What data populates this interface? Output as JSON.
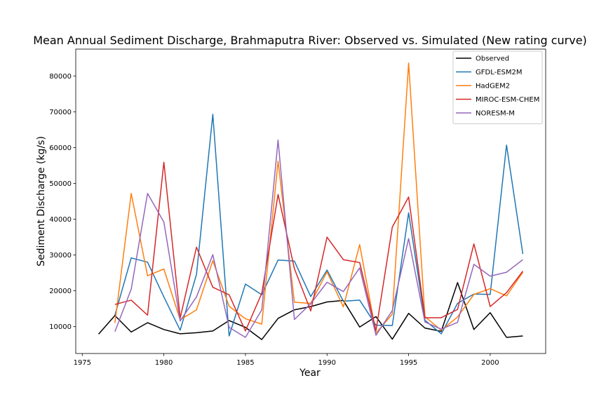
{
  "chart_data": {
    "type": "line",
    "title": "Mean Annual Sediment Discharge, Brahmaputra River: Observed vs. Simulated (New rating curve)",
    "xlabel": "Year",
    "ylabel": "Sediment Discharge (kg/s)",
    "xlim": [
      1974.6,
      2003.4
    ],
    "ylim": [
      2500,
      87500
    ],
    "xticks": [
      1975,
      1980,
      1985,
      1990,
      1995,
      2000
    ],
    "yticks": [
      10000,
      20000,
      30000,
      40000,
      50000,
      60000,
      70000,
      80000
    ],
    "grid": false,
    "legend_position": "upper-right",
    "series": [
      {
        "name": "Observed",
        "color": "#000000",
        "x": [
          1976,
          1977,
          1978,
          1979,
          1980,
          1981,
          1982,
          1983,
          1984,
          1985,
          1986,
          1987,
          1988,
          1989,
          1990,
          1991,
          1992,
          1993,
          1994,
          1995,
          1996,
          1997,
          1998,
          1999,
          2000,
          2001,
          2002
        ],
        "values": [
          7900,
          13100,
          8500,
          11100,
          9200,
          8000,
          8300,
          8800,
          11700,
          9800,
          6400,
          12300,
          14700,
          15600,
          16900,
          17300,
          9900,
          12800,
          6500,
          13700,
          9600,
          8700,
          22300,
          9200,
          13900,
          7000,
          7400
        ]
      },
      {
        "name": "GFDL-ESM2M",
        "color": "#1f77b4",
        "x": [
          1977,
          1978,
          1979,
          1980,
          1981,
          1982,
          1983,
          1984,
          1985,
          1986,
          1987,
          1988,
          1989,
          1990,
          1991,
          1992,
          1993,
          1994,
          1995,
          1996,
          1997,
          1998,
          1999,
          2000,
          2001,
          2002
        ],
        "values": [
          13200,
          29200,
          28000,
          18300,
          9000,
          24600,
          69300,
          7400,
          21900,
          18900,
          28600,
          28300,
          18400,
          25800,
          17100,
          17400,
          10400,
          10300,
          41800,
          11800,
          8000,
          16500,
          19100,
          19000,
          60700,
          30300
        ]
      },
      {
        "name": "HadGEM2",
        "color": "#ff7f0e",
        "x": [
          1977,
          1978,
          1979,
          1980,
          1981,
          1982,
          1983,
          1984,
          1985,
          1986,
          1987,
          1988,
          1989,
          1990,
          1991,
          1992,
          1993,
          1994,
          1995,
          1996,
          1997,
          1998,
          1999,
          2000,
          2001,
          2002
        ],
        "values": [
          11000,
          47200,
          24200,
          26100,
          11900,
          14700,
          28400,
          15700,
          12200,
          10700,
          56200,
          16800,
          16500,
          25300,
          15500,
          32900,
          8200,
          13500,
          83600,
          12800,
          9000,
          12700,
          19000,
          20600,
          18600,
          25200
        ]
      },
      {
        "name": "MIROC-ESM-CHEM",
        "color": "#d62728",
        "x": [
          1977,
          1978,
          1979,
          1980,
          1981,
          1982,
          1983,
          1984,
          1985,
          1986,
          1987,
          1988,
          1989,
          1990,
          1991,
          1992,
          1993,
          1994,
          1995,
          1996,
          1997,
          1998,
          1999,
          2000,
          2001,
          2002
        ],
        "values": [
          16200,
          17400,
          13200,
          55900,
          12400,
          32200,
          21000,
          18900,
          8800,
          19300,
          46900,
          26200,
          14400,
          35000,
          28700,
          27900,
          8900,
          37800,
          46200,
          12500,
          12500,
          14800,
          33100,
          15600,
          19500,
          25500
        ]
      },
      {
        "name": "NORESM-M",
        "color": "#9467bd",
        "x": [
          1977,
          1978,
          1979,
          1980,
          1981,
          1982,
          1983,
          1984,
          1985,
          1986,
          1987,
          1988,
          1989,
          1990,
          1991,
          1992,
          1993,
          1994,
          1995,
          1996,
          1997,
          1998,
          1999,
          2000,
          2001,
          2002
        ],
        "values": [
          8600,
          20500,
          47200,
          39200,
          11600,
          18300,
          30100,
          9800,
          7000,
          14700,
          62100,
          12000,
          16400,
          22400,
          19800,
          26400,
          7600,
          14500,
          34600,
          11300,
          9300,
          11200,
          27400,
          24100,
          25200,
          28700
        ]
      }
    ]
  }
}
